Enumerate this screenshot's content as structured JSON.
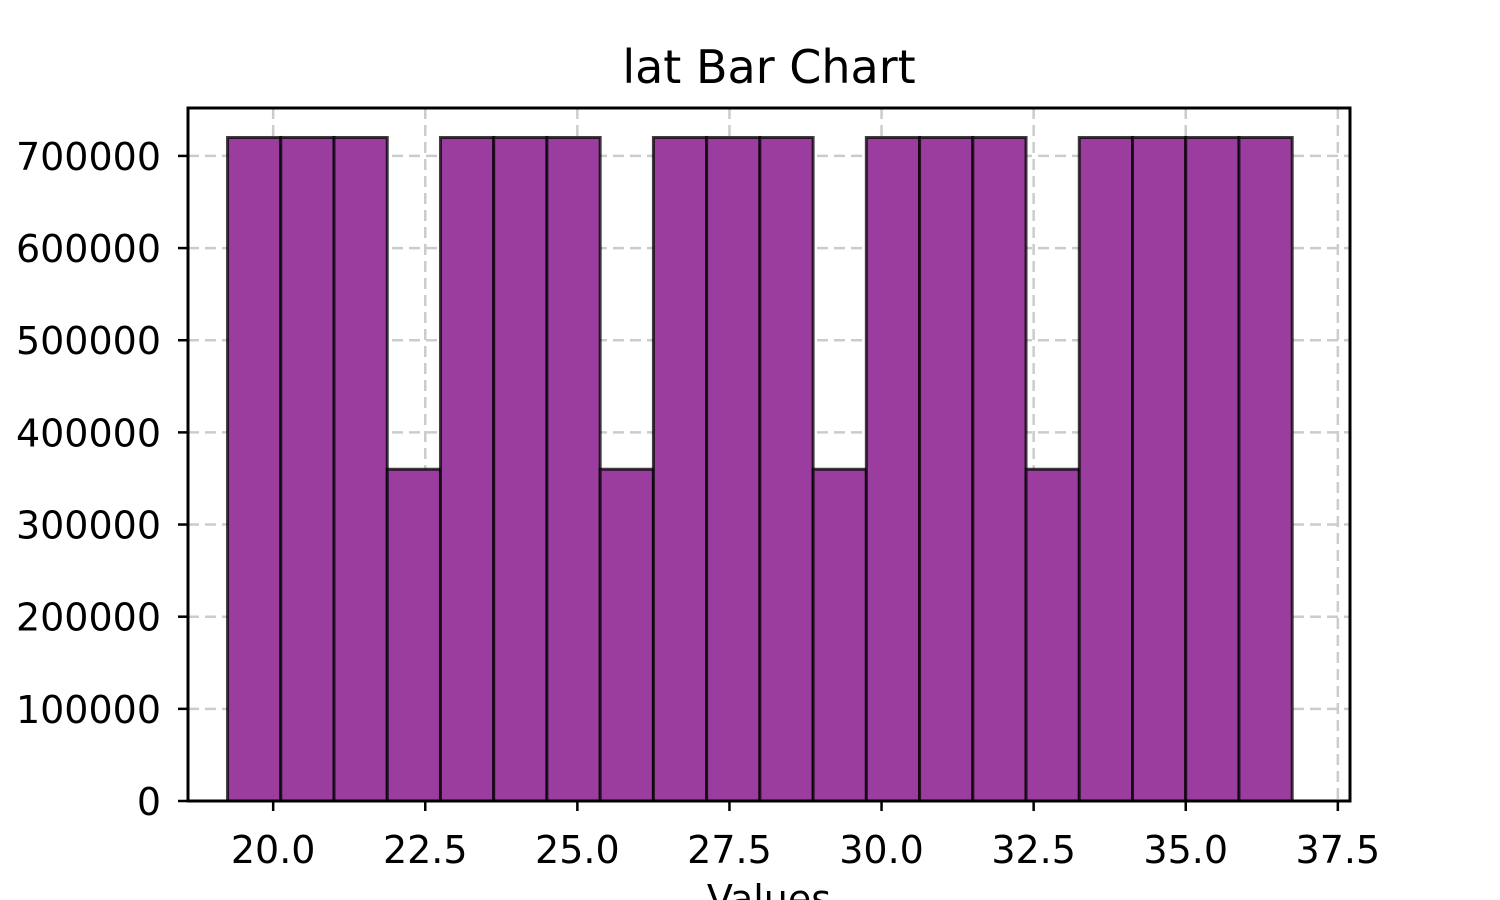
{
  "chart_data": {
    "type": "bar",
    "title": "lat Bar Chart",
    "xlabel": "Values",
    "ylabel": "",
    "bin_edges": [
      19.25,
      20.125,
      21.0,
      21.875,
      22.75,
      23.625,
      24.5,
      25.375,
      26.25,
      27.125,
      28.0,
      28.875,
      29.75,
      30.625,
      31.5,
      32.375,
      33.25,
      34.125,
      35.0,
      35.875,
      36.75
    ],
    "values": [
      720000,
      720000,
      720000,
      360000,
      720000,
      720000,
      720000,
      360000,
      720000,
      720000,
      720000,
      360000,
      720000,
      720000,
      720000,
      360000,
      720000,
      720000,
      720000,
      720000
    ],
    "xlim": [
      18.6,
      37.7
    ],
    "ylim": [
      0,
      752000
    ],
    "x_ticks": [
      20.0,
      22.5,
      25.0,
      27.5,
      30.0,
      32.5,
      35.0,
      37.5
    ],
    "x_tick_labels": [
      "20.0",
      "22.5",
      "25.0",
      "27.5",
      "30.0",
      "32.5",
      "35.0",
      "37.5"
    ],
    "y_ticks": [
      0,
      100000,
      200000,
      300000,
      400000,
      500000,
      600000,
      700000
    ],
    "y_tick_labels": [
      "0",
      "100000",
      "200000",
      "300000",
      "400000",
      "500000",
      "600000",
      "700000"
    ],
    "grid": true,
    "bar_color": "#9b3d9e",
    "edge_color": "#000000",
    "grid_color": "#cccccc"
  }
}
